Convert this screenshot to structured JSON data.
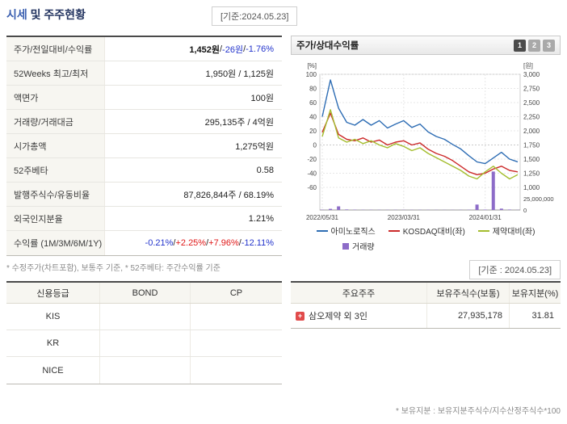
{
  "header": {
    "title_em": "시세",
    "title_rest": " 및 주주현황",
    "base_date": "[기준:2024.05.23]"
  },
  "colors": {
    "positive": "#e01818",
    "negative": "#2233cc",
    "accent_title": "#3a5fb0",
    "label_bg": "#f7f6f1"
  },
  "price_table": {
    "rows": {
      "price": {
        "label": "주가/전일대비/수익률",
        "price": "1,452원",
        "sep": " / ",
        "change": "-26원",
        "rate": "-1.76%"
      },
      "week52": {
        "label": "52Weeks 최고/최저",
        "value": "1,950원 / 1,125원"
      },
      "face": {
        "label": "액면가",
        "value": "100원"
      },
      "volume": {
        "label": "거래량/거래대금",
        "value": "295,135주 / 4억원"
      },
      "mcap": {
        "label": "시가총액",
        "value": "1,275억원"
      },
      "beta": {
        "label": "52주베타",
        "value": "0.58"
      },
      "shares": {
        "label": "발행주식수/유동비율",
        "value": "87,826,844주 / 68.19%"
      },
      "foreign": {
        "label": "외국인지분율",
        "value": "1.21%"
      },
      "returns": {
        "label": "수익률 (1M/3M/6M/1Y)",
        "m1": "-0.21%",
        "m3": "+2.25%",
        "m6": "+7.96%",
        "y1": "-12.11%",
        "sep": "/ "
      }
    },
    "footnote": "* 수정주가(차트포함), 보통주 기준, * 52주베타: 주간수익률 기준"
  },
  "chart": {
    "title": "주가/상대수익률",
    "buttons": [
      "1",
      "2",
      "3"
    ],
    "base_date": "[기준 : 2024.05.23]"
  },
  "chart_data": {
    "type": "line",
    "x_ticks": [
      {
        "index": 0,
        "label": "2022/05/31"
      },
      {
        "index": 10,
        "label": "2023/03/31"
      },
      {
        "index": 20,
        "label": "2024/01/31"
      }
    ],
    "left_axis": {
      "label": "[%]",
      "min": -60,
      "max": 100,
      "ticks": [
        100,
        80,
        60,
        40,
        20,
        0,
        -20,
        -40,
        -60
      ]
    },
    "right_axis": {
      "label": "[원]",
      "min": 1000,
      "max": 3000,
      "ticks": [
        3000,
        2750,
        2500,
        2250,
        2000,
        1750,
        1500,
        1250,
        1000
      ]
    },
    "volume_axis": {
      "ticks": [
        25000000,
        0
      ]
    },
    "series": [
      {
        "name": "아미노로직스",
        "axis": "right",
        "color": "#2e6db4",
        "values": [
          2250,
          2900,
          2400,
          2150,
          2100,
          2200,
          2100,
          2180,
          2050,
          2120,
          2180,
          2060,
          2120,
          1980,
          1900,
          1850,
          1760,
          1680,
          1560,
          1450,
          1420,
          1520,
          1620,
          1500,
          1452
        ]
      },
      {
        "name": "KOSDAQ대비(좌)",
        "axis": "left",
        "color": "#cc2a2a",
        "values": [
          18,
          45,
          15,
          8,
          6,
          10,
          4,
          7,
          0,
          4,
          6,
          0,
          3,
          -6,
          -12,
          -16,
          -22,
          -30,
          -38,
          -42,
          -40,
          -34,
          -30,
          -36,
          -38
        ]
      },
      {
        "name": "제약대비(좌)",
        "axis": "left",
        "color": "#a4bd2e",
        "values": [
          12,
          50,
          10,
          4,
          8,
          2,
          6,
          0,
          -4,
          2,
          -2,
          -8,
          -4,
          -12,
          -18,
          -24,
          -30,
          -36,
          -44,
          -48,
          -38,
          -30,
          -40,
          -48,
          -42
        ]
      }
    ],
    "volume": {
      "name": "거래량",
      "color": "#8d6cc8",
      "values": [
        600000,
        2500000,
        8000000,
        1200000,
        700000,
        500000,
        450000,
        400000,
        350000,
        400000,
        380000,
        350000,
        400000,
        350000,
        320000,
        300000,
        350000,
        400000,
        500000,
        12000000,
        900000,
        85000000,
        3000000,
        1000000,
        295135
      ]
    }
  },
  "credit_table": {
    "headers": [
      "신용등급",
      "BOND",
      "CP"
    ],
    "rows": [
      {
        "agency": "KIS",
        "bond": "",
        "cp": ""
      },
      {
        "agency": "KR",
        "bond": "",
        "cp": ""
      },
      {
        "agency": "NICE",
        "bond": "",
        "cp": ""
      }
    ]
  },
  "shareholder_table": {
    "headers": [
      "주요주주",
      "보유주식수(보통)",
      "보유지분(%)"
    ],
    "rows": [
      {
        "icon": "+",
        "name": "삼오제약 외 3인",
        "shares": "27,935,178",
        "ratio": "31.81"
      }
    ],
    "footnote": "* 보유지분 : 보유지분주식수/지수산정주식수*100"
  }
}
